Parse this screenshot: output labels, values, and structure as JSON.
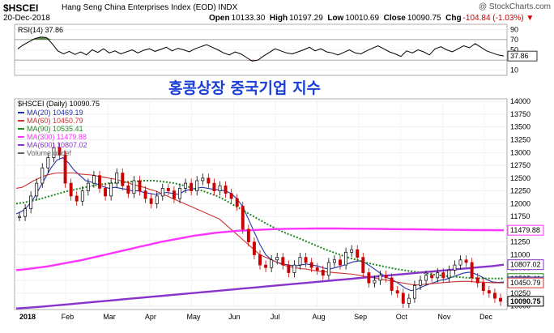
{
  "header": {
    "symbol": "$HSCEI",
    "name": "Hang Seng China Enterprises Index (EOD)  INDX",
    "date": "20-Dec-2018",
    "open_label": "Open",
    "open": "10133.30",
    "high_label": "High",
    "high": "10197.29",
    "low_label": "Low",
    "low": "10010.69",
    "close_label": "Close",
    "close": "10090.75",
    "chg_label": "Chg",
    "chg": "-104.84 (-1.03%)",
    "chg_marker": "▼",
    "brand": "@ StockCharts.com"
  },
  "overlay_title": "홍콩상장 중국기업 지수",
  "colors": {
    "ma20": "#2233aa",
    "ma60": "#cc3333",
    "ma90": "#228822",
    "ma300": "#ff33ff",
    "ma600": "#8833cc",
    "price": "#000000",
    "price_down": "#cc0000"
  },
  "chart_data": [
    {
      "type": "line",
      "panel": "RSI",
      "label": "RSI(14) 37.86",
      "y_ticks": [
        10,
        50,
        70,
        90
      ],
      "ylim": [
        0,
        100
      ],
      "reference_lines": [
        30,
        70
      ],
      "last_value": 37.86,
      "last_value_label": "37.86",
      "values": [
        52,
        60,
        66,
        72,
        75,
        74,
        62,
        48,
        42,
        47,
        41,
        46,
        40,
        50,
        45,
        52,
        44,
        48,
        42,
        46,
        50,
        44,
        49,
        52,
        47,
        51,
        55,
        48,
        53,
        50,
        46,
        52,
        56,
        60,
        55,
        50,
        44,
        40,
        46,
        42,
        35,
        28,
        30,
        38,
        45,
        52,
        48,
        44,
        42,
        46,
        50,
        55,
        48,
        52,
        46,
        44,
        40,
        45,
        50,
        44,
        42,
        48,
        53,
        58,
        52,
        46,
        42,
        37,
        48,
        44,
        50,
        46,
        40,
        52,
        56,
        50,
        46,
        52,
        58,
        54,
        62,
        55,
        48,
        44,
        40,
        38
      ]
    },
    {
      "type": "candlestick",
      "panel": "Price",
      "label": "$HSCEI (Daily) 10090.75",
      "x_ticks": [
        "2018",
        "Feb",
        "Mar",
        "Apr",
        "May",
        "Jun",
        "Jul",
        "Aug",
        "Sep",
        "Oct",
        "Nov",
        "Dec"
      ],
      "y_ticks": [
        10000,
        10250,
        10500,
        10750,
        11000,
        11250,
        11500,
        11750,
        12000,
        12250,
        12500,
        12750,
        13000,
        13250,
        13500,
        13750,
        14000
      ],
      "ylim": [
        9930,
        14050
      ],
      "close": [
        11750,
        11900,
        12150,
        12400,
        12700,
        12900,
        13100,
        12950,
        12400,
        12150,
        12050,
        12250,
        12400,
        12550,
        12300,
        12150,
        12400,
        12600,
        12350,
        12200,
        12450,
        12250,
        12100,
        12000,
        12150,
        12300,
        12250,
        12100,
        12300,
        12400,
        12250,
        12450,
        12500,
        12400,
        12250,
        12350,
        12200,
        12100,
        11950,
        11500,
        11250,
        11000,
        10800,
        10750,
        10900,
        10950,
        10800,
        10650,
        10800,
        10950,
        10850,
        10750,
        10700,
        10600,
        10850,
        10900,
        10800,
        11050,
        11100,
        10950,
        10650,
        10450,
        10500,
        10600,
        10550,
        10300,
        10250,
        10050,
        10150,
        10400,
        10500,
        10600,
        10550,
        10650,
        10550,
        10700,
        10800,
        10900,
        10850,
        10550,
        10450,
        10300,
        10250,
        10150,
        10090.75
      ],
      "legend": [
        {
          "label": "MA(20) 10469.19",
          "color": "#2233aa",
          "values": [
            11800,
            11850,
            11950,
            12100,
            12300,
            12500,
            12700,
            12850,
            12900,
            12800,
            12650,
            12550,
            12450,
            12420,
            12380,
            12330,
            12300,
            12320,
            12300,
            12280,
            12250,
            12250,
            12220,
            12200,
            12180,
            12200,
            12220,
            12200,
            12180,
            12250,
            12280,
            12300,
            12320,
            12300,
            12280,
            12270,
            12250,
            12200,
            12100,
            11950,
            11700,
            11450,
            11200,
            11000,
            10900,
            10850,
            10820,
            10800,
            10780,
            10800,
            10820,
            10800,
            10780,
            10740,
            10720,
            10750,
            10780,
            10820,
            10860,
            10880,
            10850,
            10780,
            10700,
            10620,
            10550,
            10500,
            10430,
            10350,
            10300,
            10320,
            10380,
            10420,
            10460,
            10500,
            10520,
            10560,
            10600,
            10640,
            10660,
            10630,
            10580,
            10520,
            10470,
            10460,
            10469.19
          ]
        },
        {
          "label": "MA(60) 10450.79",
          "color": "#cc3333",
          "values": [
            12300,
            12320,
            12380,
            12450,
            12500,
            12550,
            12580,
            12600,
            12600,
            12600,
            12600,
            12580,
            12570,
            12560,
            12540,
            12520,
            12500,
            12480,
            12450,
            12420,
            12380,
            12350,
            12320,
            12280,
            12250,
            12200,
            12150,
            12100,
            12050,
            12000,
            11950,
            11900,
            11850,
            11800,
            11750,
            11700,
            11600,
            11500,
            11400,
            11300,
            11200,
            11100,
            11000,
            10950,
            10900,
            10850,
            10800,
            10770,
            10750,
            10730,
            10720,
            10700,
            10680,
            10670,
            10660,
            10650,
            10640,
            10630,
            10620,
            10600,
            10580,
            10560,
            10540,
            10520,
            10500,
            10480,
            10460,
            10440,
            10420,
            10410,
            10420,
            10430,
            10440,
            10450,
            10460,
            10470,
            10475,
            10480,
            10480,
            10470,
            10465,
            10460,
            10455,
            10452,
            10450.79
          ]
        },
        {
          "label": "MA(90) 10535.41",
          "color": "#228822",
          "values": [
            12000,
            12020,
            12050,
            12080,
            12120,
            12160,
            12200,
            12240,
            12270,
            12300,
            12330,
            12360,
            12380,
            12400,
            12410,
            12420,
            12430,
            12440,
            12450,
            12450,
            12440,
            12420,
            12400,
            12370,
            12330,
            12290,
            12250,
            12200,
            12150,
            12080,
            12000,
            11920,
            11840,
            11760,
            11680,
            11600,
            11530,
            11460,
            11400,
            11350,
            11290,
            11230,
            11170,
            11110,
            11060,
            11010,
            10960,
            10920,
            10880,
            10840,
            10810,
            10780,
            10750,
            10720,
            10700,
            10680,
            10660,
            10640,
            10620,
            10600,
            10585,
            10570,
            10560,
            10550,
            10545,
            10540,
            10538,
            10536,
            10535.41
          ]
        },
        {
          "label": "MA(300) 11479.88",
          "color": "#ff33ff",
          "values": [
            10700,
            10720,
            10750,
            10780,
            10820,
            10860,
            10900,
            10950,
            11000,
            11050,
            11100,
            11150,
            11200,
            11250,
            11290,
            11330,
            11370,
            11400,
            11430,
            11450,
            11470,
            11480,
            11490,
            11500,
            11505,
            11510,
            11512,
            11515,
            11515,
            11515,
            11512,
            11510,
            11508,
            11505,
            11502,
            11500,
            11498,
            11495,
            11492,
            11490,
            11488,
            11485,
            11483,
            11481,
            11479.88
          ]
        },
        {
          "label": "MA(600) 10807.02",
          "color": "#8833cc",
          "values": [
            9950,
            9965,
            9980,
            10000,
            10020,
            10040,
            10060,
            10080,
            10100,
            10120,
            10140,
            10160,
            10180,
            10200,
            10220,
            10240,
            10260,
            10280,
            10300,
            10320,
            10340,
            10360,
            10380,
            10400,
            10420,
            10440,
            10460,
            10480,
            10500,
            10520,
            10540,
            10560,
            10580,
            10600,
            10620,
            10640,
            10660,
            10680,
            10700,
            10720,
            10740,
            10760,
            10780,
            10807.02
          ]
        },
        {
          "label": "Volume undef",
          "color": "#666666"
        }
      ],
      "price_labels": [
        {
          "text": "11479.88",
          "color": "#ff33ff",
          "value": 11479.88
        },
        {
          "text": "10807.02",
          "color": "#8833cc",
          "value": 10807.02
        },
        {
          "text": "10535.41",
          "color": "#228822",
          "value": 10535.41
        },
        {
          "text": "10469.19",
          "color": "#2233aa",
          "value": 10469.19
        },
        {
          "text": "10450.79",
          "color": "#cc3333",
          "value": 10450.79
        },
        {
          "text": "10090.75",
          "color": "#000000",
          "value": 10090.75
        }
      ]
    }
  ]
}
